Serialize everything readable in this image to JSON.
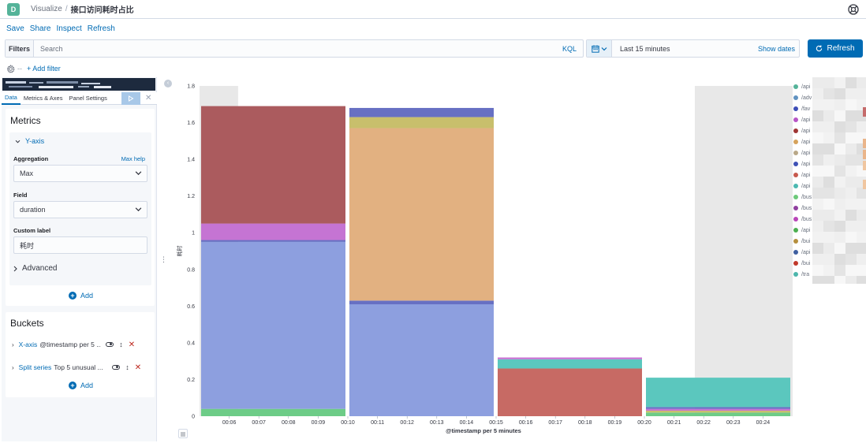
{
  "app": {
    "logo_letter": "D",
    "breadcrumb": [
      "Visualize"
    ],
    "title": "接口访问耗时占比"
  },
  "menu": [
    "Save",
    "Share",
    "Inspect",
    "Refresh"
  ],
  "filters": {
    "label": "Filters",
    "search_placeholder": "Search",
    "kql": "KQL",
    "time_range": "Last 15 minutes",
    "show_dates": "Show dates",
    "refresh_button": "Refresh",
    "add_filter": "+ Add filter",
    "dash": "--"
  },
  "editor": {
    "tabs": [
      "Data",
      "Metrics & Axes",
      "Panel Settings"
    ],
    "metrics": {
      "title": "Metrics",
      "yaxis_link": "Y-axis",
      "aggregation_label": "Aggregation",
      "aggregation_help": "Max help",
      "aggregation_value": "Max",
      "field_label": "Field",
      "field_value": "duration",
      "custom_label_label": "Custom label",
      "custom_label_value": "耗时",
      "advanced": "Advanced",
      "add": "Add"
    },
    "buckets": {
      "title": "Buckets",
      "rows": [
        {
          "link": "X-axis",
          "desc": "@timestamp per 5 ..."
        },
        {
          "link": "Split series",
          "desc": "Top 5 unusual ..."
        }
      ],
      "add": "Add"
    }
  },
  "colors": {
    "accent": "#006bb4",
    "green": "#6dcc87",
    "blue": "#8d9fdf",
    "purple": "#6770c3",
    "magenta": "#c574d3",
    "red": "#ab5b5e",
    "peach": "#e2b181",
    "olive": "#c8bf6c",
    "salmon": "#c76a64",
    "teal": "#5bc7be",
    "grid_band": "#e8e8e8"
  },
  "chart_data": {
    "type": "bar",
    "stacked": true,
    "xlabel": "@timestamp per 5 minutes",
    "ylabel": "耗时",
    "ylim": [
      0,
      1.8
    ],
    "yticks": [
      "0",
      "0.2",
      "0.4",
      "0.6",
      "0.8",
      "1",
      "1.2",
      "1.4",
      "1.6",
      "1.8"
    ],
    "xticks": [
      "00:06",
      "00:07",
      "00:08",
      "00:09",
      "00:10",
      "00:11",
      "00:12",
      "00:13",
      "00:14",
      "00:15",
      "00:16",
      "00:17",
      "00:18",
      "00:19",
      "00:20",
      "00:21",
      "00:22",
      "00:23",
      "00:24"
    ],
    "bars": [
      {
        "x": "00:05",
        "segments": [
          {
            "value": 0.04,
            "color": "green"
          },
          {
            "value": 0.91,
            "color": "blue"
          },
          {
            "value": 0.01,
            "color": "purple"
          },
          {
            "value": 0.09,
            "color": "magenta"
          },
          {
            "value": 0.64,
            "color": "red"
          }
        ]
      },
      {
        "x": "00:10",
        "segments": [
          {
            "value": 0.61,
            "color": "blue"
          },
          {
            "value": 0.02,
            "color": "purple"
          },
          {
            "value": 0.94,
            "color": "peach"
          },
          {
            "value": 0.06,
            "color": "olive"
          },
          {
            "value": 0.05,
            "color": "purple"
          }
        ]
      },
      {
        "x": "00:15",
        "segments": [
          {
            "value": 0.26,
            "color": "salmon"
          },
          {
            "value": 0.05,
            "color": "teal"
          },
          {
            "value": 0.01,
            "color": "magenta"
          }
        ]
      },
      {
        "x": "00:20",
        "segments": [
          {
            "value": 0.02,
            "color": "green"
          },
          {
            "value": 0.01,
            "color": "olive"
          },
          {
            "value": 0.01,
            "color": "magenta"
          },
          {
            "value": 0.01,
            "color": "purple"
          },
          {
            "value": 0.16,
            "color": "teal"
          }
        ]
      }
    ],
    "legend_position": "right",
    "legend": [
      {
        "label": "/api",
        "color": "#54b399"
      },
      {
        "label": "/adv",
        "color": "#6092c0"
      },
      {
        "label": "/fav",
        "color": "#3d4db7"
      },
      {
        "label": "/api",
        "color": "#b755c6"
      },
      {
        "label": "/api",
        "color": "#9e3533"
      },
      {
        "label": "/api",
        "color": "#d6a35c"
      },
      {
        "label": "/api",
        "color": "#b9a888"
      },
      {
        "label": "/api",
        "color": "#3f51b5"
      },
      {
        "label": "/api",
        "color": "#c75a4e"
      },
      {
        "label": "/api",
        "color": "#4cb8b0"
      },
      {
        "label": "/bus",
        "color": "#6dc97a"
      },
      {
        "label": "/bus",
        "color": "#9040a0"
      },
      {
        "label": "/bus",
        "color": "#b945b8"
      },
      {
        "label": "/api",
        "color": "#4caf50"
      },
      {
        "label": "/bui",
        "color": "#b58f3d"
      },
      {
        "label": "/api",
        "color": "#3f5fa0"
      },
      {
        "label": "/bui",
        "color": "#c0392b"
      },
      {
        "label": "/tra",
        "color": "#4db6ac"
      }
    ]
  }
}
